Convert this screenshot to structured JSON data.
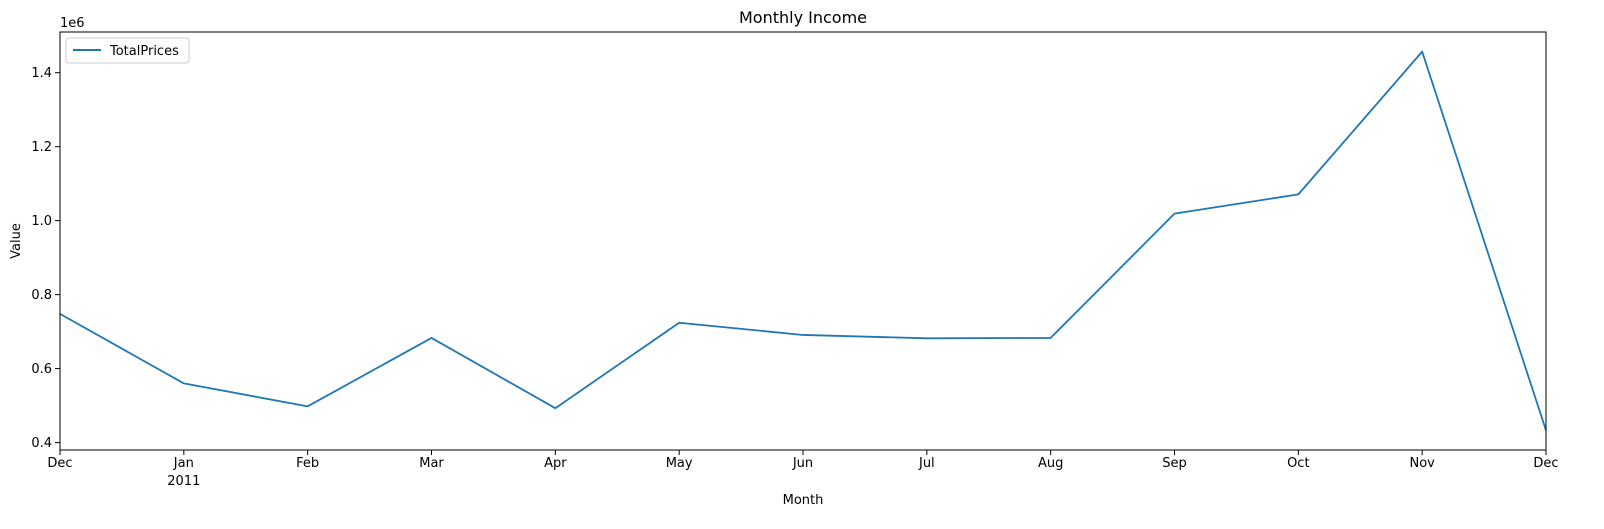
{
  "chart_data": {
    "type": "line",
    "title": "Monthly Income",
    "xlabel": "Month",
    "ylabel": "Value",
    "y_offset_label": "1e6",
    "x": [
      "2010-12",
      "2011-01",
      "2011-02",
      "2011-03",
      "2011-04",
      "2011-05",
      "2011-06",
      "2011-07",
      "2011-08",
      "2011-09",
      "2011-10",
      "2011-11",
      "2011-12"
    ],
    "x_tick_labels": [
      "Dec",
      "Jan",
      "Feb",
      "Mar",
      "Apr",
      "May",
      "Jun",
      "Jul",
      "Aug",
      "Sep",
      "Oct",
      "Nov",
      "Dec"
    ],
    "x_secondary_label": "2011",
    "series": [
      {
        "name": "TotalPrices",
        "color": "#1f77b4",
        "values": [
          748000,
          560000,
          498000,
          683000,
          493000,
          724000,
          691000,
          682000,
          683000,
          1019000,
          1071000,
          1457000,
          433000
        ]
      }
    ],
    "ylim": [
      0.38,
      1.51
    ],
    "y_ticks": [
      0.4,
      0.6,
      0.8,
      1.0,
      1.2,
      1.4
    ],
    "y_tick_labels": [
      "0.4",
      "0.6",
      "0.8",
      "1.0",
      "1.2",
      "1.4"
    ],
    "grid": false,
    "legend_position": "upper-left"
  }
}
